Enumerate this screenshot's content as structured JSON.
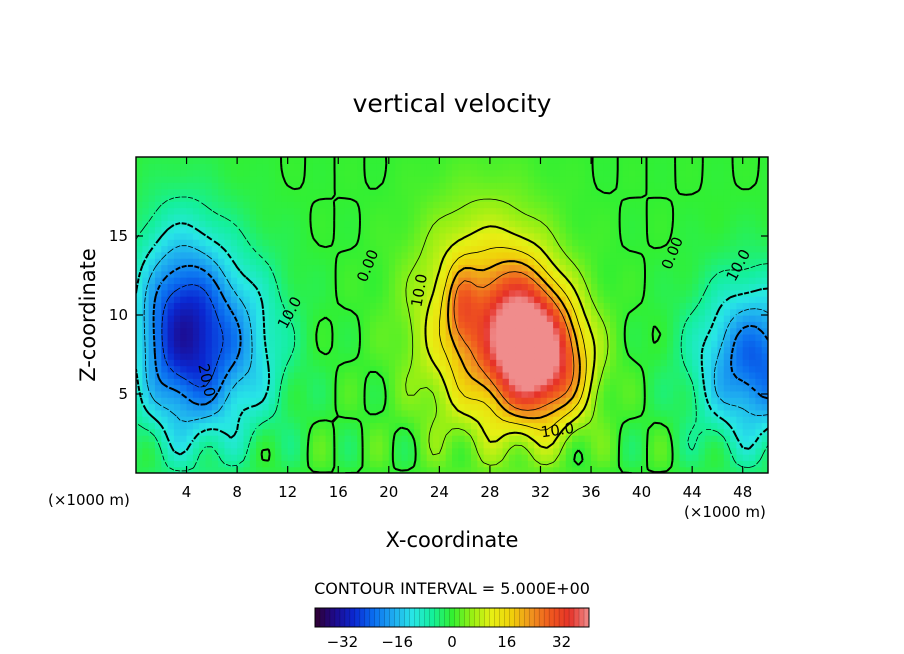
{
  "chart_data": {
    "type": "heatmap",
    "title": "vertical velocity",
    "xlabel": "X-coordinate",
    "ylabel": "Z-coordinate",
    "x_unit": "(×1000 m)",
    "x_unit_right": "(×1000 m)",
    "xlim": [
      0,
      50
    ],
    "ylim": [
      0,
      20
    ],
    "x_ticks": [
      4,
      8,
      12,
      16,
      20,
      24,
      28,
      32,
      36,
      40,
      44,
      48
    ],
    "y_ticks": [
      5,
      10,
      15
    ],
    "contour_interval_text": "CONTOUR INTERVAL = 5.000E+00",
    "colorbar": {
      "min": -40,
      "max": 40,
      "ticks": [
        -32,
        -16,
        0,
        16,
        32
      ],
      "colors": [
        "#300030",
        "#1e0a8c",
        "#0a28d2",
        "#0a6ef0",
        "#1eaaf0",
        "#28e6e6",
        "#14f09b",
        "#32f032",
        "#96f014",
        "#e6f014",
        "#f0d20a",
        "#f0961e",
        "#f05a1e",
        "#e63228",
        "#f08c8c"
      ]
    },
    "contour_labels": [
      {
        "text": "0.00",
        "x": 18.7,
        "z": 13.0,
        "angle": -68
      },
      {
        "text": "10.0",
        "x": 22.8,
        "z": 11.5,
        "angle": -80
      },
      {
        "text": "10.0",
        "x": 12.5,
        "z": 10.0,
        "angle": -62
      },
      {
        "text": "20.0",
        "x": 5.2,
        "z": 5.8,
        "angle": 78
      },
      {
        "text": "10.0",
        "x": 33.4,
        "z": 2.4,
        "angle": -8
      },
      {
        "text": "0.00",
        "x": 42.8,
        "z": 13.8,
        "angle": -68
      },
      {
        "text": "10.0",
        "x": 48.0,
        "z": 13.0,
        "angle": -62
      }
    ],
    "field": {
      "description_units": "velocity",
      "updrafts": [
        {
          "x": 27.5,
          "z": 9.5,
          "amp": 22,
          "sx": 3.5,
          "sz": 4.5
        },
        {
          "x": 30.5,
          "z": 8.5,
          "amp": 28,
          "sx": 2.0,
          "sz": 3.0
        },
        {
          "x": 33.0,
          "z": 7.0,
          "amp": 26,
          "sx": 2.2,
          "sz": 2.8
        },
        {
          "x": 25.8,
          "z": 10.5,
          "amp": 10,
          "sx": 0.8,
          "sz": 1.8
        }
      ],
      "downdrafts": [
        {
          "x": 3.5,
          "z": 9.0,
          "amp": -28,
          "sx": 2.6,
          "sz": 4.5
        },
        {
          "x": 8.0,
          "z": 8.0,
          "amp": -14,
          "sx": 2.8,
          "sz": 4.0
        },
        {
          "x": 49.0,
          "z": 7.0,
          "amp": -24,
          "sx": 3.2,
          "sz": 3.5
        }
      ]
    }
  }
}
